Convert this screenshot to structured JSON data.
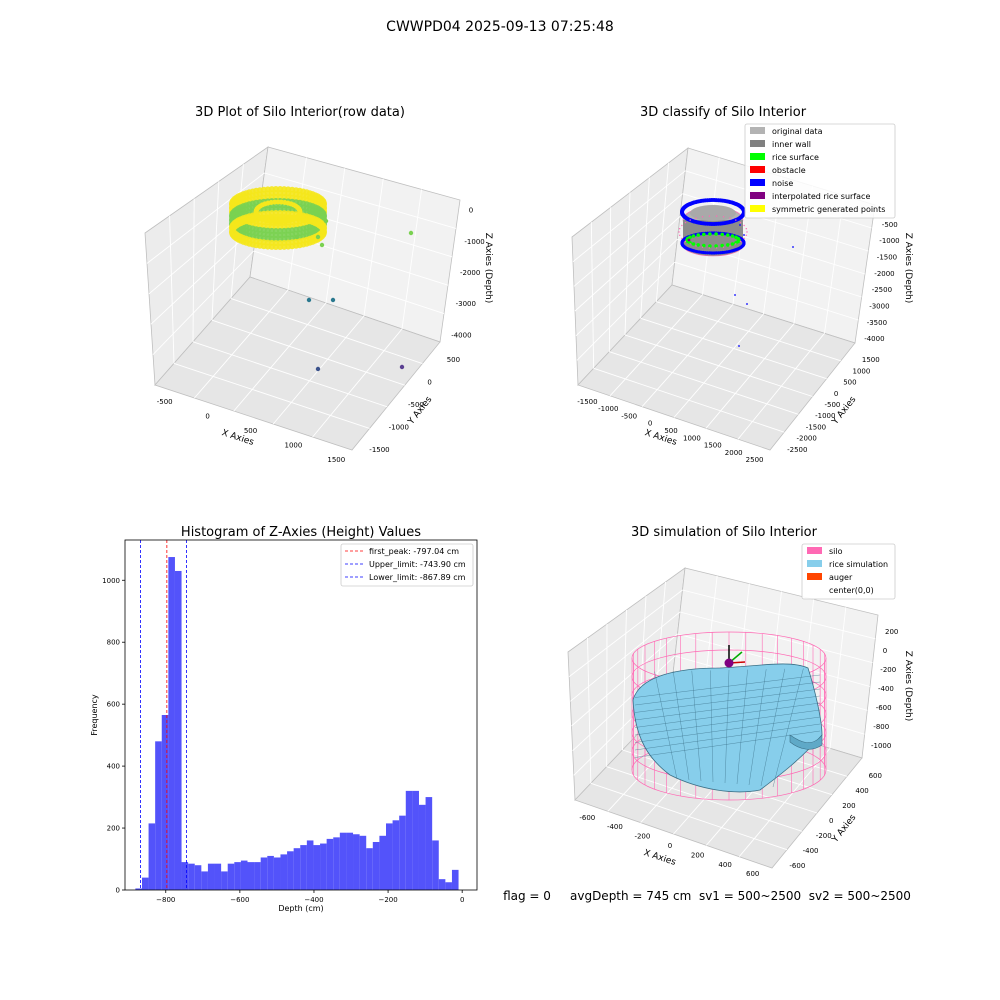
{
  "figure": {
    "suptitle": "CWWPD04 2025-09-13 07:25:48",
    "footer": "flag = 0     avgDepth = 745 cm  sv1 = 500~2500  sv2 = 500~2500"
  },
  "chart_data": [
    {
      "type": "scatter",
      "title": "3D Plot of Silo Interior(row data)",
      "xlabel": "X Axies",
      "ylabel": "Y Axies",
      "zlabel": "Z Axies (Depth)",
      "x_ticks": [
        "-500",
        "0",
        "500",
        "1000",
        "1500"
      ],
      "y_ticks": [
        "500",
        "0",
        "-500",
        "-1000",
        "-1500"
      ],
      "z_ticks": [
        "0",
        "-1000",
        "-2000",
        "-3000",
        "-4000"
      ],
      "colors": {
        "high": "#f5e71c",
        "mid": "#7ad151",
        "low": "#2a788e",
        "deep": "#3b528b"
      }
    },
    {
      "type": "scatter",
      "title": "3D classify of Silo Interior",
      "xlabel": "X Axies",
      "ylabel": "Y Axies",
      "zlabel": "Z Axies (Depth)",
      "x_ticks": [
        "-1500",
        "-1000",
        "-500",
        "0",
        "500",
        "1000",
        "1500",
        "2000",
        "2500"
      ],
      "y_ticks": [
        "1500",
        "1000",
        "500",
        "0",
        "-500",
        "-1000",
        "-1500",
        "-2000",
        "-2500"
      ],
      "z_ticks": [
        "-500",
        "-1000",
        "-1500",
        "-2000",
        "-2500",
        "-3000",
        "-3500",
        "-4000"
      ],
      "legend": [
        {
          "label": "original data",
          "color": "#b3b3b3"
        },
        {
          "label": "inner wall",
          "color": "#808080"
        },
        {
          "label": "rice surface",
          "color": "#00ff00"
        },
        {
          "label": "obstacle",
          "color": "#ff0000"
        },
        {
          "label": "noise",
          "color": "#0000ff"
        },
        {
          "label": "interpolated rice surface",
          "color": "#800080"
        },
        {
          "label": "symmetric generated points",
          "color": "#ffff00"
        }
      ],
      "legend_position": "top-right"
    },
    {
      "type": "bar",
      "title": "Histogram of Z-Axies (Height) Values",
      "xlabel": "Depth (cm)",
      "ylabel": "Frequency",
      "xlim": [
        -910,
        40
      ],
      "ylim": [
        0,
        1130
      ],
      "x_ticks": [
        -800,
        -600,
        -400,
        -200,
        0
      ],
      "y_ticks": [
        0,
        200,
        400,
        600,
        800,
        1000
      ],
      "bin_width": 17.8,
      "bin_start": -882,
      "values": [
        5,
        40,
        215,
        480,
        565,
        1075,
        1030,
        90,
        85,
        80,
        60,
        85,
        85,
        60,
        85,
        90,
        95,
        90,
        90,
        105,
        110,
        105,
        115,
        125,
        135,
        145,
        160,
        145,
        150,
        165,
        170,
        185,
        185,
        180,
        175,
        135,
        155,
        175,
        215,
        225,
        240,
        320,
        320,
        275,
        300,
        160,
        35,
        25,
        65
      ],
      "bar_color": "#4a4afa",
      "lines": [
        {
          "label": "first_peak: -797.04 cm",
          "x": -797.04,
          "color": "#ff0000"
        },
        {
          "label": "Upper_limit: -743.90 cm",
          "x": -743.9,
          "color": "#0000ff"
        },
        {
          "label": "Lower_limit: -867.89 cm",
          "x": -867.89,
          "color": "#0000ff"
        }
      ],
      "legend_position": "top-right"
    },
    {
      "type": "area",
      "title": "3D simulation of Silo Interior",
      "xlabel": "X Axies",
      "ylabel": "Y Axies",
      "zlabel": "Z Axies (Depth)",
      "x_ticks": [
        "-600",
        "-400",
        "-200",
        "0",
        "200",
        "400",
        "600"
      ],
      "y_ticks": [
        "600",
        "400",
        "200",
        "0",
        "-200",
        "-400",
        "-600"
      ],
      "z_ticks": [
        "200",
        "0",
        "-200",
        "-400",
        "-600",
        "-800",
        "-1000"
      ],
      "legend": [
        {
          "label": "silo",
          "color": "#ff69b4"
        },
        {
          "label": "rice simulation",
          "color": "#87ceeb"
        },
        {
          "label": "auger",
          "color": "#ff4500"
        },
        {
          "label": "center(0,0)",
          "color": "#800080"
        }
      ],
      "legend_position": "top-right"
    }
  ]
}
